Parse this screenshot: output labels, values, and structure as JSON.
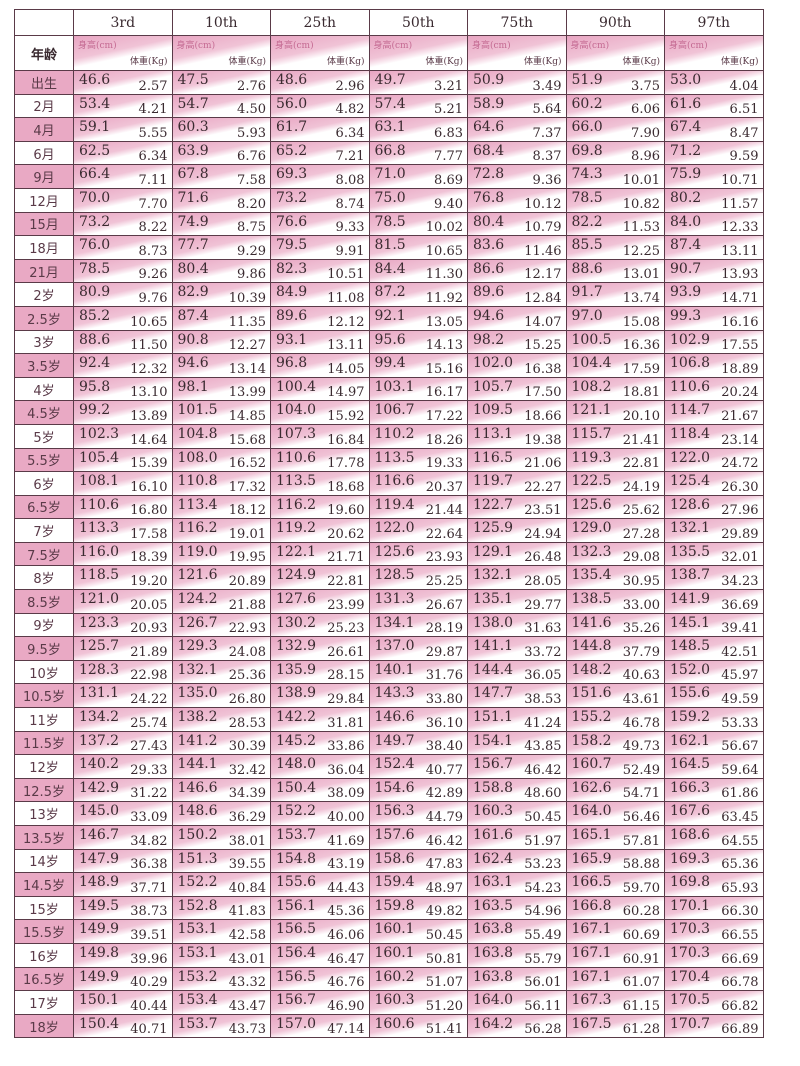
{
  "header": {
    "age_label": "年龄",
    "percentiles": [
      "3rd",
      "10th",
      "25th",
      "50th",
      "75th",
      "90th",
      "97th"
    ],
    "height_label": "身高(cm)",
    "weight_label": "体重(Kg)"
  },
  "colors": {
    "pink": "#e8a5c2",
    "border": "#5a3a48"
  },
  "rows": [
    {
      "age": "出生",
      "cells": [
        [
          "46.6",
          "2.57"
        ],
        [
          "47.5",
          "2.76"
        ],
        [
          "48.6",
          "2.96"
        ],
        [
          "49.7",
          "3.21"
        ],
        [
          "50.9",
          "3.49"
        ],
        [
          "51.9",
          "3.75"
        ],
        [
          "53.0",
          "4.04"
        ]
      ]
    },
    {
      "age": "2月",
      "cells": [
        [
          "53.4",
          "4.21"
        ],
        [
          "54.7",
          "4.50"
        ],
        [
          "56.0",
          "4.82"
        ],
        [
          "57.4",
          "5.21"
        ],
        [
          "58.9",
          "5.64"
        ],
        [
          "60.2",
          "6.06"
        ],
        [
          "61.6",
          "6.51"
        ]
      ]
    },
    {
      "age": "4月",
      "cells": [
        [
          "59.1",
          "5.55"
        ],
        [
          "60.3",
          "5.93"
        ],
        [
          "61.7",
          "6.34"
        ],
        [
          "63.1",
          "6.83"
        ],
        [
          "64.6",
          "7.37"
        ],
        [
          "66.0",
          "7.90"
        ],
        [
          "67.4",
          "8.47"
        ]
      ]
    },
    {
      "age": "6月",
      "cells": [
        [
          "62.5",
          "6.34"
        ],
        [
          "63.9",
          "6.76"
        ],
        [
          "65.2",
          "7.21"
        ],
        [
          "66.8",
          "7.77"
        ],
        [
          "68.4",
          "8.37"
        ],
        [
          "69.8",
          "8.96"
        ],
        [
          "71.2",
          "9.59"
        ]
      ]
    },
    {
      "age": "9月",
      "cells": [
        [
          "66.4",
          "7.11"
        ],
        [
          "67.8",
          "7.58"
        ],
        [
          "69.3",
          "8.08"
        ],
        [
          "71.0",
          "8.69"
        ],
        [
          "72.8",
          "9.36"
        ],
        [
          "74.3",
          "10.01"
        ],
        [
          "75.9",
          "10.71"
        ]
      ]
    },
    {
      "age": "12月",
      "cells": [
        [
          "70.0",
          "7.70"
        ],
        [
          "71.6",
          "8.20"
        ],
        [
          "73.2",
          "8.74"
        ],
        [
          "75.0",
          "9.40"
        ],
        [
          "76.8",
          "10.12"
        ],
        [
          "78.5",
          "10.82"
        ],
        [
          "80.2",
          "11.57"
        ]
      ]
    },
    {
      "age": "15月",
      "cells": [
        [
          "73.2",
          "8.22"
        ],
        [
          "74.9",
          "8.75"
        ],
        [
          "76.6",
          "9.33"
        ],
        [
          "78.5",
          "10.02"
        ],
        [
          "80.4",
          "10.79"
        ],
        [
          "82.2",
          "11.53"
        ],
        [
          "84.0",
          "12.33"
        ]
      ]
    },
    {
      "age": "18月",
      "cells": [
        [
          "76.0",
          "8.73"
        ],
        [
          "77.7",
          "9.29"
        ],
        [
          "79.5",
          "9.91"
        ],
        [
          "81.5",
          "10.65"
        ],
        [
          "83.6",
          "11.46"
        ],
        [
          "85.5",
          "12.25"
        ],
        [
          "87.4",
          "13.11"
        ]
      ]
    },
    {
      "age": "21月",
      "cells": [
        [
          "78.5",
          "9.26"
        ],
        [
          "80.4",
          "9.86"
        ],
        [
          "82.3",
          "10.51"
        ],
        [
          "84.4",
          "11.30"
        ],
        [
          "86.6",
          "12.17"
        ],
        [
          "88.6",
          "13.01"
        ],
        [
          "90.7",
          "13.93"
        ]
      ]
    },
    {
      "age": "2岁",
      "cells": [
        [
          "80.9",
          "9.76"
        ],
        [
          "82.9",
          "10.39"
        ],
        [
          "84.9",
          "11.08"
        ],
        [
          "87.2",
          "11.92"
        ],
        [
          "89.6",
          "12.84"
        ],
        [
          "91.7",
          "13.74"
        ],
        [
          "93.9",
          "14.71"
        ]
      ]
    },
    {
      "age": "2.5岁",
      "cells": [
        [
          "85.2",
          "10.65"
        ],
        [
          "87.4",
          "11.35"
        ],
        [
          "89.6",
          "12.12"
        ],
        [
          "92.1",
          "13.05"
        ],
        [
          "94.6",
          "14.07"
        ],
        [
          "97.0",
          "15.08"
        ],
        [
          "99.3",
          "16.16"
        ]
      ]
    },
    {
      "age": "3岁",
      "cells": [
        [
          "88.6",
          "11.50"
        ],
        [
          "90.8",
          "12.27"
        ],
        [
          "93.1",
          "13.11"
        ],
        [
          "95.6",
          "14.13"
        ],
        [
          "98.2",
          "15.25"
        ],
        [
          "100.5",
          "16.36"
        ],
        [
          "102.9",
          "17.55"
        ]
      ]
    },
    {
      "age": "3.5岁",
      "cells": [
        [
          "92.4",
          "12.32"
        ],
        [
          "94.6",
          "13.14"
        ],
        [
          "96.8",
          "14.05"
        ],
        [
          "99.4",
          "15.16"
        ],
        [
          "102.0",
          "16.38"
        ],
        [
          "104.4",
          "17.59"
        ],
        [
          "106.8",
          "18.89"
        ]
      ]
    },
    {
      "age": "4岁",
      "cells": [
        [
          "95.8",
          "13.10"
        ],
        [
          "98.1",
          "13.99"
        ],
        [
          "100.4",
          "14.97"
        ],
        [
          "103.1",
          "16.17"
        ],
        [
          "105.7",
          "17.50"
        ],
        [
          "108.2",
          "18.81"
        ],
        [
          "110.6",
          "20.24"
        ]
      ]
    },
    {
      "age": "4.5岁",
      "cells": [
        [
          "99.2",
          "13.89"
        ],
        [
          "101.5",
          "14.85"
        ],
        [
          "104.0",
          "15.92"
        ],
        [
          "106.7",
          "17.22"
        ],
        [
          "109.5",
          "18.66"
        ],
        [
          "121.1",
          "20.10"
        ],
        [
          "114.7",
          "21.67"
        ]
      ]
    },
    {
      "age": "5岁",
      "cells": [
        [
          "102.3",
          "14.64"
        ],
        [
          "104.8",
          "15.68"
        ],
        [
          "107.3",
          "16.84"
        ],
        [
          "110.2",
          "18.26"
        ],
        [
          "113.1",
          "19.38"
        ],
        [
          "115.7",
          "21.41"
        ],
        [
          "118.4",
          "23.14"
        ]
      ]
    },
    {
      "age": "5.5岁",
      "cells": [
        [
          "105.4",
          "15.39"
        ],
        [
          "108.0",
          "16.52"
        ],
        [
          "110.6",
          "17.78"
        ],
        [
          "113.5",
          "19.33"
        ],
        [
          "116.5",
          "21.06"
        ],
        [
          "119.3",
          "22.81"
        ],
        [
          "122.0",
          "24.72"
        ]
      ]
    },
    {
      "age": "6岁",
      "cells": [
        [
          "108.1",
          "16.10"
        ],
        [
          "110.8",
          "17.32"
        ],
        [
          "113.5",
          "18.68"
        ],
        [
          "116.6",
          "20.37"
        ],
        [
          "119.7",
          "22.27"
        ],
        [
          "122.5",
          "24.19"
        ],
        [
          "125.4",
          "26.30"
        ]
      ]
    },
    {
      "age": "6.5岁",
      "cells": [
        [
          "110.6",
          "16.80"
        ],
        [
          "113.4",
          "18.12"
        ],
        [
          "116.2",
          "19.60"
        ],
        [
          "119.4",
          "21.44"
        ],
        [
          "122.7",
          "23.51"
        ],
        [
          "125.6",
          "25.62"
        ],
        [
          "128.6",
          "27.96"
        ]
      ]
    },
    {
      "age": "7岁",
      "cells": [
        [
          "113.3",
          "17.58"
        ],
        [
          "116.2",
          "19.01"
        ],
        [
          "119.2",
          "20.62"
        ],
        [
          "122.0",
          "22.64"
        ],
        [
          "125.9",
          "24.94"
        ],
        [
          "129.0",
          "27.28"
        ],
        [
          "132.1",
          "29.89"
        ]
      ]
    },
    {
      "age": "7.5岁",
      "cells": [
        [
          "116.0",
          "18.39"
        ],
        [
          "119.0",
          "19.95"
        ],
        [
          "122.1",
          "21.71"
        ],
        [
          "125.6",
          "23.93"
        ],
        [
          "129.1",
          "26.48"
        ],
        [
          "132.3",
          "29.08"
        ],
        [
          "135.5",
          "32.01"
        ]
      ]
    },
    {
      "age": "8岁",
      "cells": [
        [
          "118.5",
          "19.20"
        ],
        [
          "121.6",
          "20.89"
        ],
        [
          "124.9",
          "22.81"
        ],
        [
          "128.5",
          "25.25"
        ],
        [
          "132.1",
          "28.05"
        ],
        [
          "135.4",
          "30.95"
        ],
        [
          "138.7",
          "34.23"
        ]
      ]
    },
    {
      "age": "8.5岁",
      "cells": [
        [
          "121.0",
          "20.05"
        ],
        [
          "124.2",
          "21.88"
        ],
        [
          "127.6",
          "23.99"
        ],
        [
          "131.3",
          "26.67"
        ],
        [
          "135.1",
          "29.77"
        ],
        [
          "138.5",
          "33.00"
        ],
        [
          "141.9",
          "36.69"
        ]
      ]
    },
    {
      "age": "9岁",
      "cells": [
        [
          "123.3",
          "20.93"
        ],
        [
          "126.7",
          "22.93"
        ],
        [
          "130.2",
          "25.23"
        ],
        [
          "134.1",
          "28.19"
        ],
        [
          "138.0",
          "31.63"
        ],
        [
          "141.6",
          "35.26"
        ],
        [
          "145.1",
          "39.41"
        ]
      ]
    },
    {
      "age": "9.5岁",
      "cells": [
        [
          "125.7",
          "21.89"
        ],
        [
          "129.3",
          "24.08"
        ],
        [
          "132.9",
          "26.61"
        ],
        [
          "137.0",
          "29.87"
        ],
        [
          "141.1",
          "33.72"
        ],
        [
          "144.8",
          "37.79"
        ],
        [
          "148.5",
          "42.51"
        ]
      ]
    },
    {
      "age": "10岁",
      "cells": [
        [
          "128.3",
          "22.98"
        ],
        [
          "132.1",
          "25.36"
        ],
        [
          "135.9",
          "28.15"
        ],
        [
          "140.1",
          "31.76"
        ],
        [
          "144.4",
          "36.05"
        ],
        [
          "148.2",
          "40.63"
        ],
        [
          "152.0",
          "45.97"
        ]
      ]
    },
    {
      "age": "10.5岁",
      "cells": [
        [
          "131.1",
          "24.22"
        ],
        [
          "135.0",
          "26.80"
        ],
        [
          "138.9",
          "29.84"
        ],
        [
          "143.3",
          "33.80"
        ],
        [
          "147.7",
          "38.53"
        ],
        [
          "151.6",
          "43.61"
        ],
        [
          "155.6",
          "49.59"
        ]
      ]
    },
    {
      "age": "11岁",
      "cells": [
        [
          "134.2",
          "25.74"
        ],
        [
          "138.2",
          "28.53"
        ],
        [
          "142.2",
          "31.81"
        ],
        [
          "146.6",
          "36.10"
        ],
        [
          "151.1",
          "41.24"
        ],
        [
          "155.2",
          "46.78"
        ],
        [
          "159.2",
          "53.33"
        ]
      ]
    },
    {
      "age": "11.5岁",
      "cells": [
        [
          "137.2",
          "27.43"
        ],
        [
          "141.2",
          "30.39"
        ],
        [
          "145.2",
          "33.86"
        ],
        [
          "149.7",
          "38.40"
        ],
        [
          "154.1",
          "43.85"
        ],
        [
          "158.2",
          "49.73"
        ],
        [
          "162.1",
          "56.67"
        ]
      ]
    },
    {
      "age": "12岁",
      "cells": [
        [
          "140.2",
          "29.33"
        ],
        [
          "144.1",
          "32.42"
        ],
        [
          "148.0",
          "36.04"
        ],
        [
          "152.4",
          "40.77"
        ],
        [
          "156.7",
          "46.42"
        ],
        [
          "160.7",
          "52.49"
        ],
        [
          "164.5",
          "59.64"
        ]
      ]
    },
    {
      "age": "12.5岁",
      "cells": [
        [
          "142.9",
          "31.22"
        ],
        [
          "146.6",
          "34.39"
        ],
        [
          "150.4",
          "38.09"
        ],
        [
          "154.6",
          "42.89"
        ],
        [
          "158.8",
          "48.60"
        ],
        [
          "162.6",
          "54.71"
        ],
        [
          "166.3",
          "61.86"
        ]
      ]
    },
    {
      "age": "13岁",
      "cells": [
        [
          "145.0",
          "33.09"
        ],
        [
          "148.6",
          "36.29"
        ],
        [
          "152.2",
          "40.00"
        ],
        [
          "156.3",
          "44.79"
        ],
        [
          "160.3",
          "50.45"
        ],
        [
          "164.0",
          "56.46"
        ],
        [
          "167.6",
          "63.45"
        ]
      ]
    },
    {
      "age": "13.5岁",
      "cells": [
        [
          "146.7",
          "34.82"
        ],
        [
          "150.2",
          "38.01"
        ],
        [
          "153.7",
          "41.69"
        ],
        [
          "157.6",
          "46.42"
        ],
        [
          "161.6",
          "51.97"
        ],
        [
          "165.1",
          "57.81"
        ],
        [
          "168.6",
          "64.55"
        ]
      ]
    },
    {
      "age": "14岁",
      "cells": [
        [
          "147.9",
          "36.38"
        ],
        [
          "151.3",
          "39.55"
        ],
        [
          "154.8",
          "43.19"
        ],
        [
          "158.6",
          "47.83"
        ],
        [
          "162.4",
          "53.23"
        ],
        [
          "165.9",
          "58.88"
        ],
        [
          "169.3",
          "65.36"
        ]
      ]
    },
    {
      "age": "14.5岁",
      "cells": [
        [
          "148.9",
          "37.71"
        ],
        [
          "152.2",
          "40.84"
        ],
        [
          "155.6",
          "44.43"
        ],
        [
          "159.4",
          "48.97"
        ],
        [
          "163.1",
          "54.23"
        ],
        [
          "166.5",
          "59.70"
        ],
        [
          "169.8",
          "65.93"
        ]
      ]
    },
    {
      "age": "15岁",
      "cells": [
        [
          "149.5",
          "38.73"
        ],
        [
          "152.8",
          "41.83"
        ],
        [
          "156.1",
          "45.36"
        ],
        [
          "159.8",
          "49.82"
        ],
        [
          "163.5",
          "54.96"
        ],
        [
          "166.8",
          "60.28"
        ],
        [
          "170.1",
          "66.30"
        ]
      ]
    },
    {
      "age": "15.5岁",
      "cells": [
        [
          "149.9",
          "39.51"
        ],
        [
          "153.1",
          "42.58"
        ],
        [
          "156.5",
          "46.06"
        ],
        [
          "160.1",
          "50.45"
        ],
        [
          "163.8",
          "55.49"
        ],
        [
          "167.1",
          "60.69"
        ],
        [
          "170.3",
          "66.55"
        ]
      ]
    },
    {
      "age": "16岁",
      "cells": [
        [
          "149.8",
          "39.96"
        ],
        [
          "153.1",
          "43.01"
        ],
        [
          "156.4",
          "46.47"
        ],
        [
          "160.1",
          "50.81"
        ],
        [
          "163.8",
          "55.79"
        ],
        [
          "167.1",
          "60.91"
        ],
        [
          "170.3",
          "66.69"
        ]
      ]
    },
    {
      "age": "16.5岁",
      "cells": [
        [
          "149.9",
          "40.29"
        ],
        [
          "153.2",
          "43.32"
        ],
        [
          "156.5",
          "46.76"
        ],
        [
          "160.2",
          "51.07"
        ],
        [
          "163.8",
          "56.01"
        ],
        [
          "167.1",
          "61.07"
        ],
        [
          "170.4",
          "66.78"
        ]
      ]
    },
    {
      "age": "17岁",
      "cells": [
        [
          "150.1",
          "40.44"
        ],
        [
          "153.4",
          "43.47"
        ],
        [
          "156.7",
          "46.90"
        ],
        [
          "160.3",
          "51.20"
        ],
        [
          "164.0",
          "56.11"
        ],
        [
          "167.3",
          "61.15"
        ],
        [
          "170.5",
          "66.82"
        ]
      ]
    },
    {
      "age": "18岁",
      "cells": [
        [
          "150.4",
          "40.71"
        ],
        [
          "153.7",
          "43.73"
        ],
        [
          "157.0",
          "47.14"
        ],
        [
          "160.6",
          "51.41"
        ],
        [
          "164.2",
          "56.28"
        ],
        [
          "167.5",
          "61.28"
        ],
        [
          "170.7",
          "66.89"
        ]
      ]
    }
  ]
}
